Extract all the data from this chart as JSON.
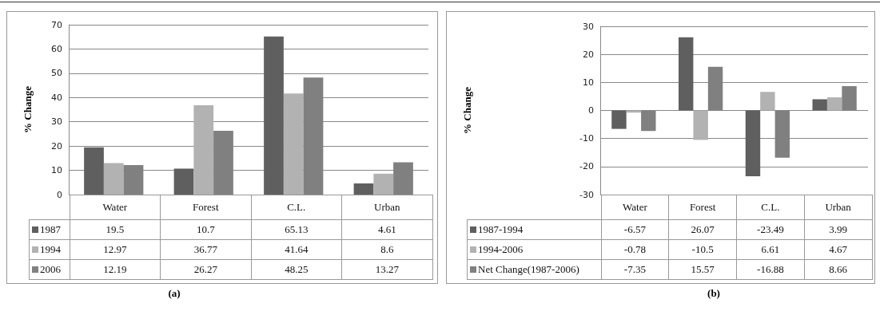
{
  "chart_data": [
    {
      "type": "bar",
      "ylabel": "% Change",
      "categories": [
        "Water",
        "Forest",
        "C.L.",
        "Urban"
      ],
      "series": [
        {
          "name": "1987",
          "color": "#5f5f5f",
          "values": [
            19.5,
            10.7,
            65.13,
            4.61
          ]
        },
        {
          "name": "1994",
          "color": "#b2b2b2",
          "values": [
            12.97,
            36.77,
            41.64,
            8.6
          ]
        },
        {
          "name": "2006",
          "color": "#808080",
          "values": [
            12.19,
            26.27,
            48.25,
            13.27
          ]
        }
      ],
      "ylim": [
        0,
        70
      ],
      "yticks": [
        0,
        10,
        20,
        30,
        40,
        50,
        60,
        70
      ],
      "grid": "y",
      "legend": "bottom left",
      "data_labels": true,
      "annotations": [
        "(a)"
      ]
    },
    {
      "type": "bar",
      "ylabel": "% Change",
      "categories": [
        "Water",
        "Forest",
        "C.L.",
        "Urban"
      ],
      "series": [
        {
          "name": "1987-1994",
          "color": "#5f5f5f",
          "values": [
            -6.57,
            26.07,
            -23.49,
            3.99
          ]
        },
        {
          "name": "1994-2006",
          "color": "#b2b2b2",
          "values": [
            -0.78,
            -10.5,
            6.61,
            4.67
          ]
        },
        {
          "name": "Net Change(1987-2006)",
          "color": "#808080",
          "values": [
            -7.35,
            15.57,
            -16.88,
            8.66
          ]
        }
      ],
      "ylim": [
        -30,
        30
      ],
      "yticks": [
        -30,
        -20,
        -10,
        0,
        10,
        20,
        30
      ],
      "grid": "y",
      "legend": "bottom left",
      "data_labels": true,
      "annotations": [
        "(b)"
      ]
    }
  ]
}
